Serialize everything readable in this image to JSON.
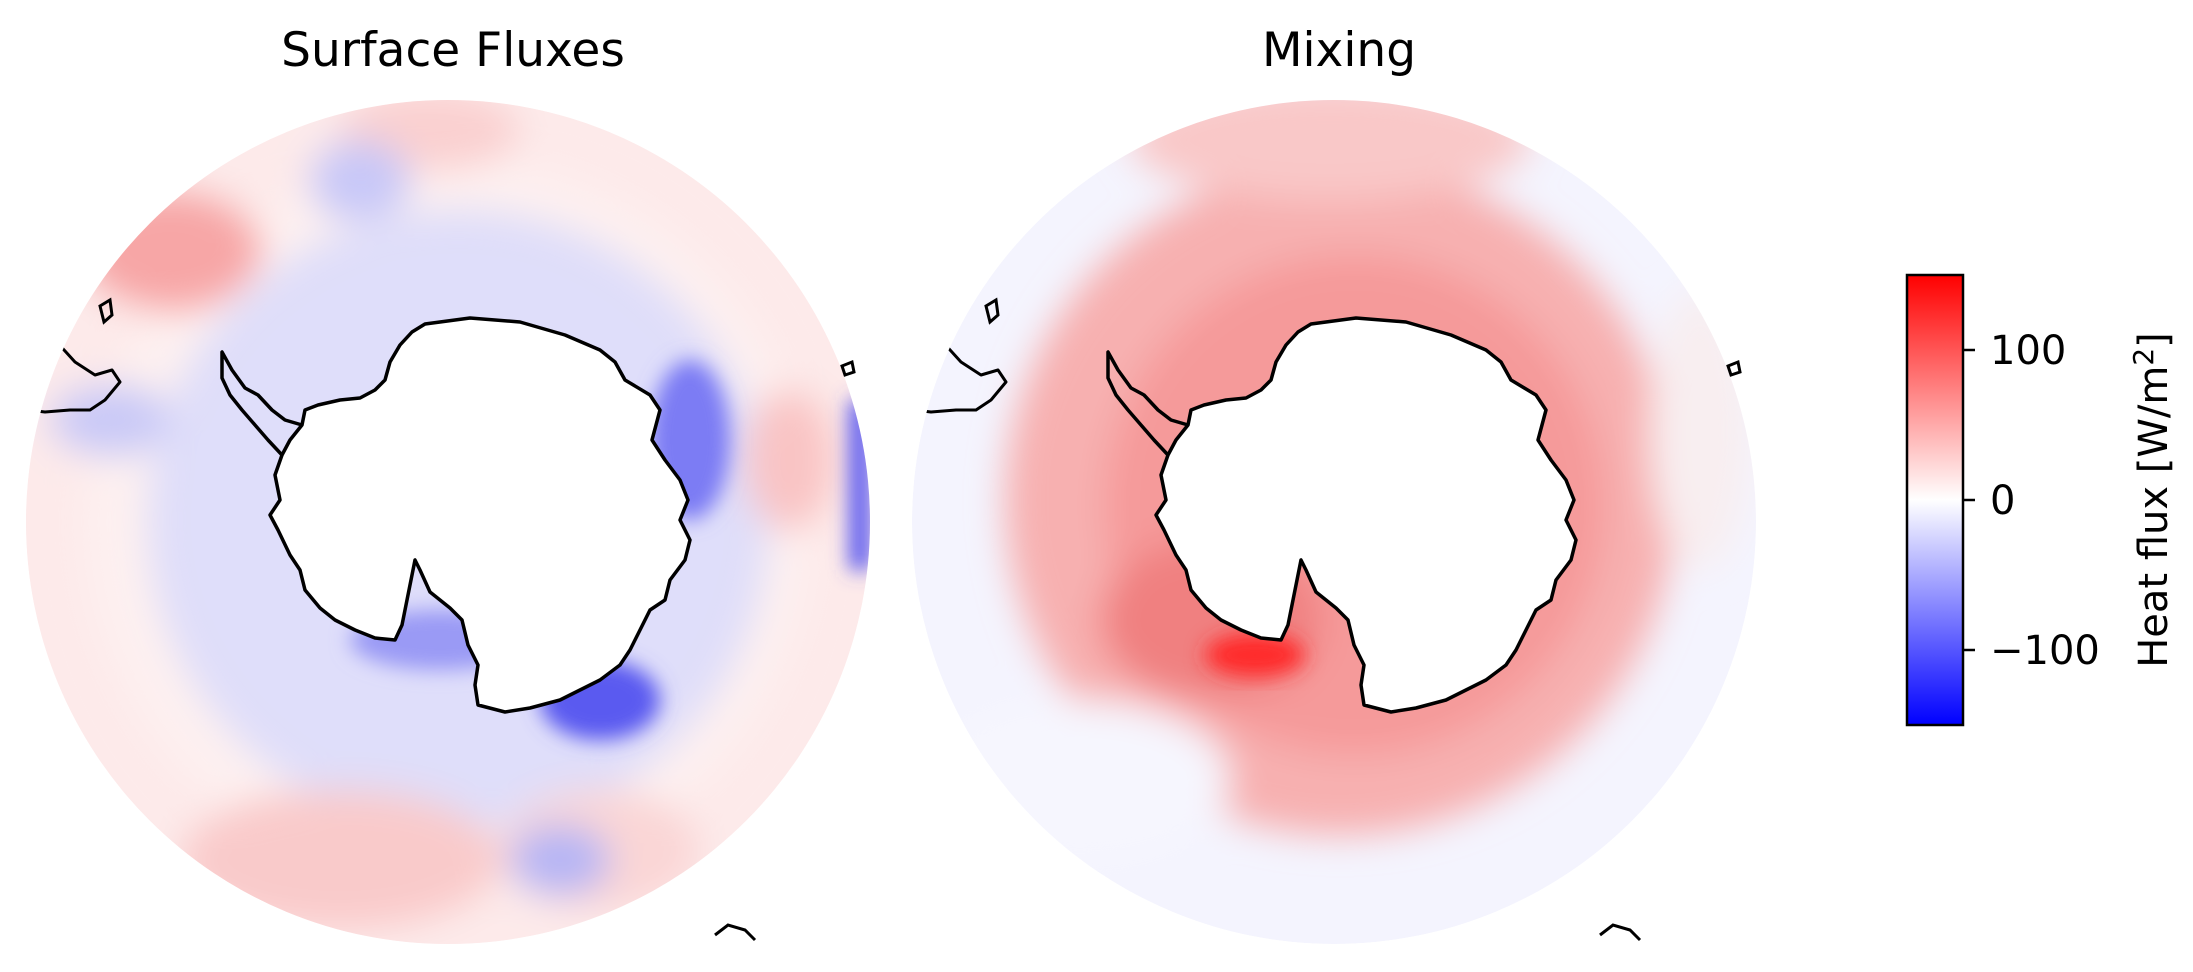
{
  "figure": {
    "panels": [
      {
        "title": "Surface Fluxes",
        "pattern": "surface"
      },
      {
        "title": "Mixing",
        "pattern": "mixing"
      }
    ],
    "colorbar": {
      "label_prefix": "Heat flux [W/m",
      "label_sup": "2",
      "label_suffix": "]",
      "tick_labels": [
        "100",
        "0",
        "−100"
      ]
    }
  },
  "chart_data": {
    "type": "heatmap",
    "projection": "south-polar-stereographic",
    "colormap": "bwr",
    "colors": {
      "negative": "#0000ff",
      "zero": "#ffffff",
      "positive": "#ff0000",
      "coastline": "#000000"
    },
    "vmin": -150,
    "vmax": 150,
    "ticks": [
      100,
      0,
      -100
    ],
    "panels": [
      {
        "title": "Surface Fluxes",
        "features": [
          {
            "region": "Antarctic shelf ring",
            "sign": "negative",
            "approx_value": -50
          },
          {
            "region": "Ross Sea / Amundsen coast",
            "sign": "negative",
            "approx_value": -120
          },
          {
            "region": "Atlantic & Indian subtropical edge",
            "sign": "positive",
            "approx_value": 30
          },
          {
            "region": "Pacific sector outer ring",
            "sign": "positive",
            "approx_value": 30
          }
        ]
      },
      {
        "title": "Mixing",
        "features": [
          {
            "region": "Circumpolar ring around Antarctica",
            "sign": "positive",
            "approx_value": 50
          },
          {
            "region": "Weddell Sea shelf",
            "sign": "positive",
            "approx_value": 130
          },
          {
            "region": "Outer subtropical edge",
            "sign": "near-zero/negative",
            "approx_value": -10
          }
        ]
      }
    ]
  }
}
